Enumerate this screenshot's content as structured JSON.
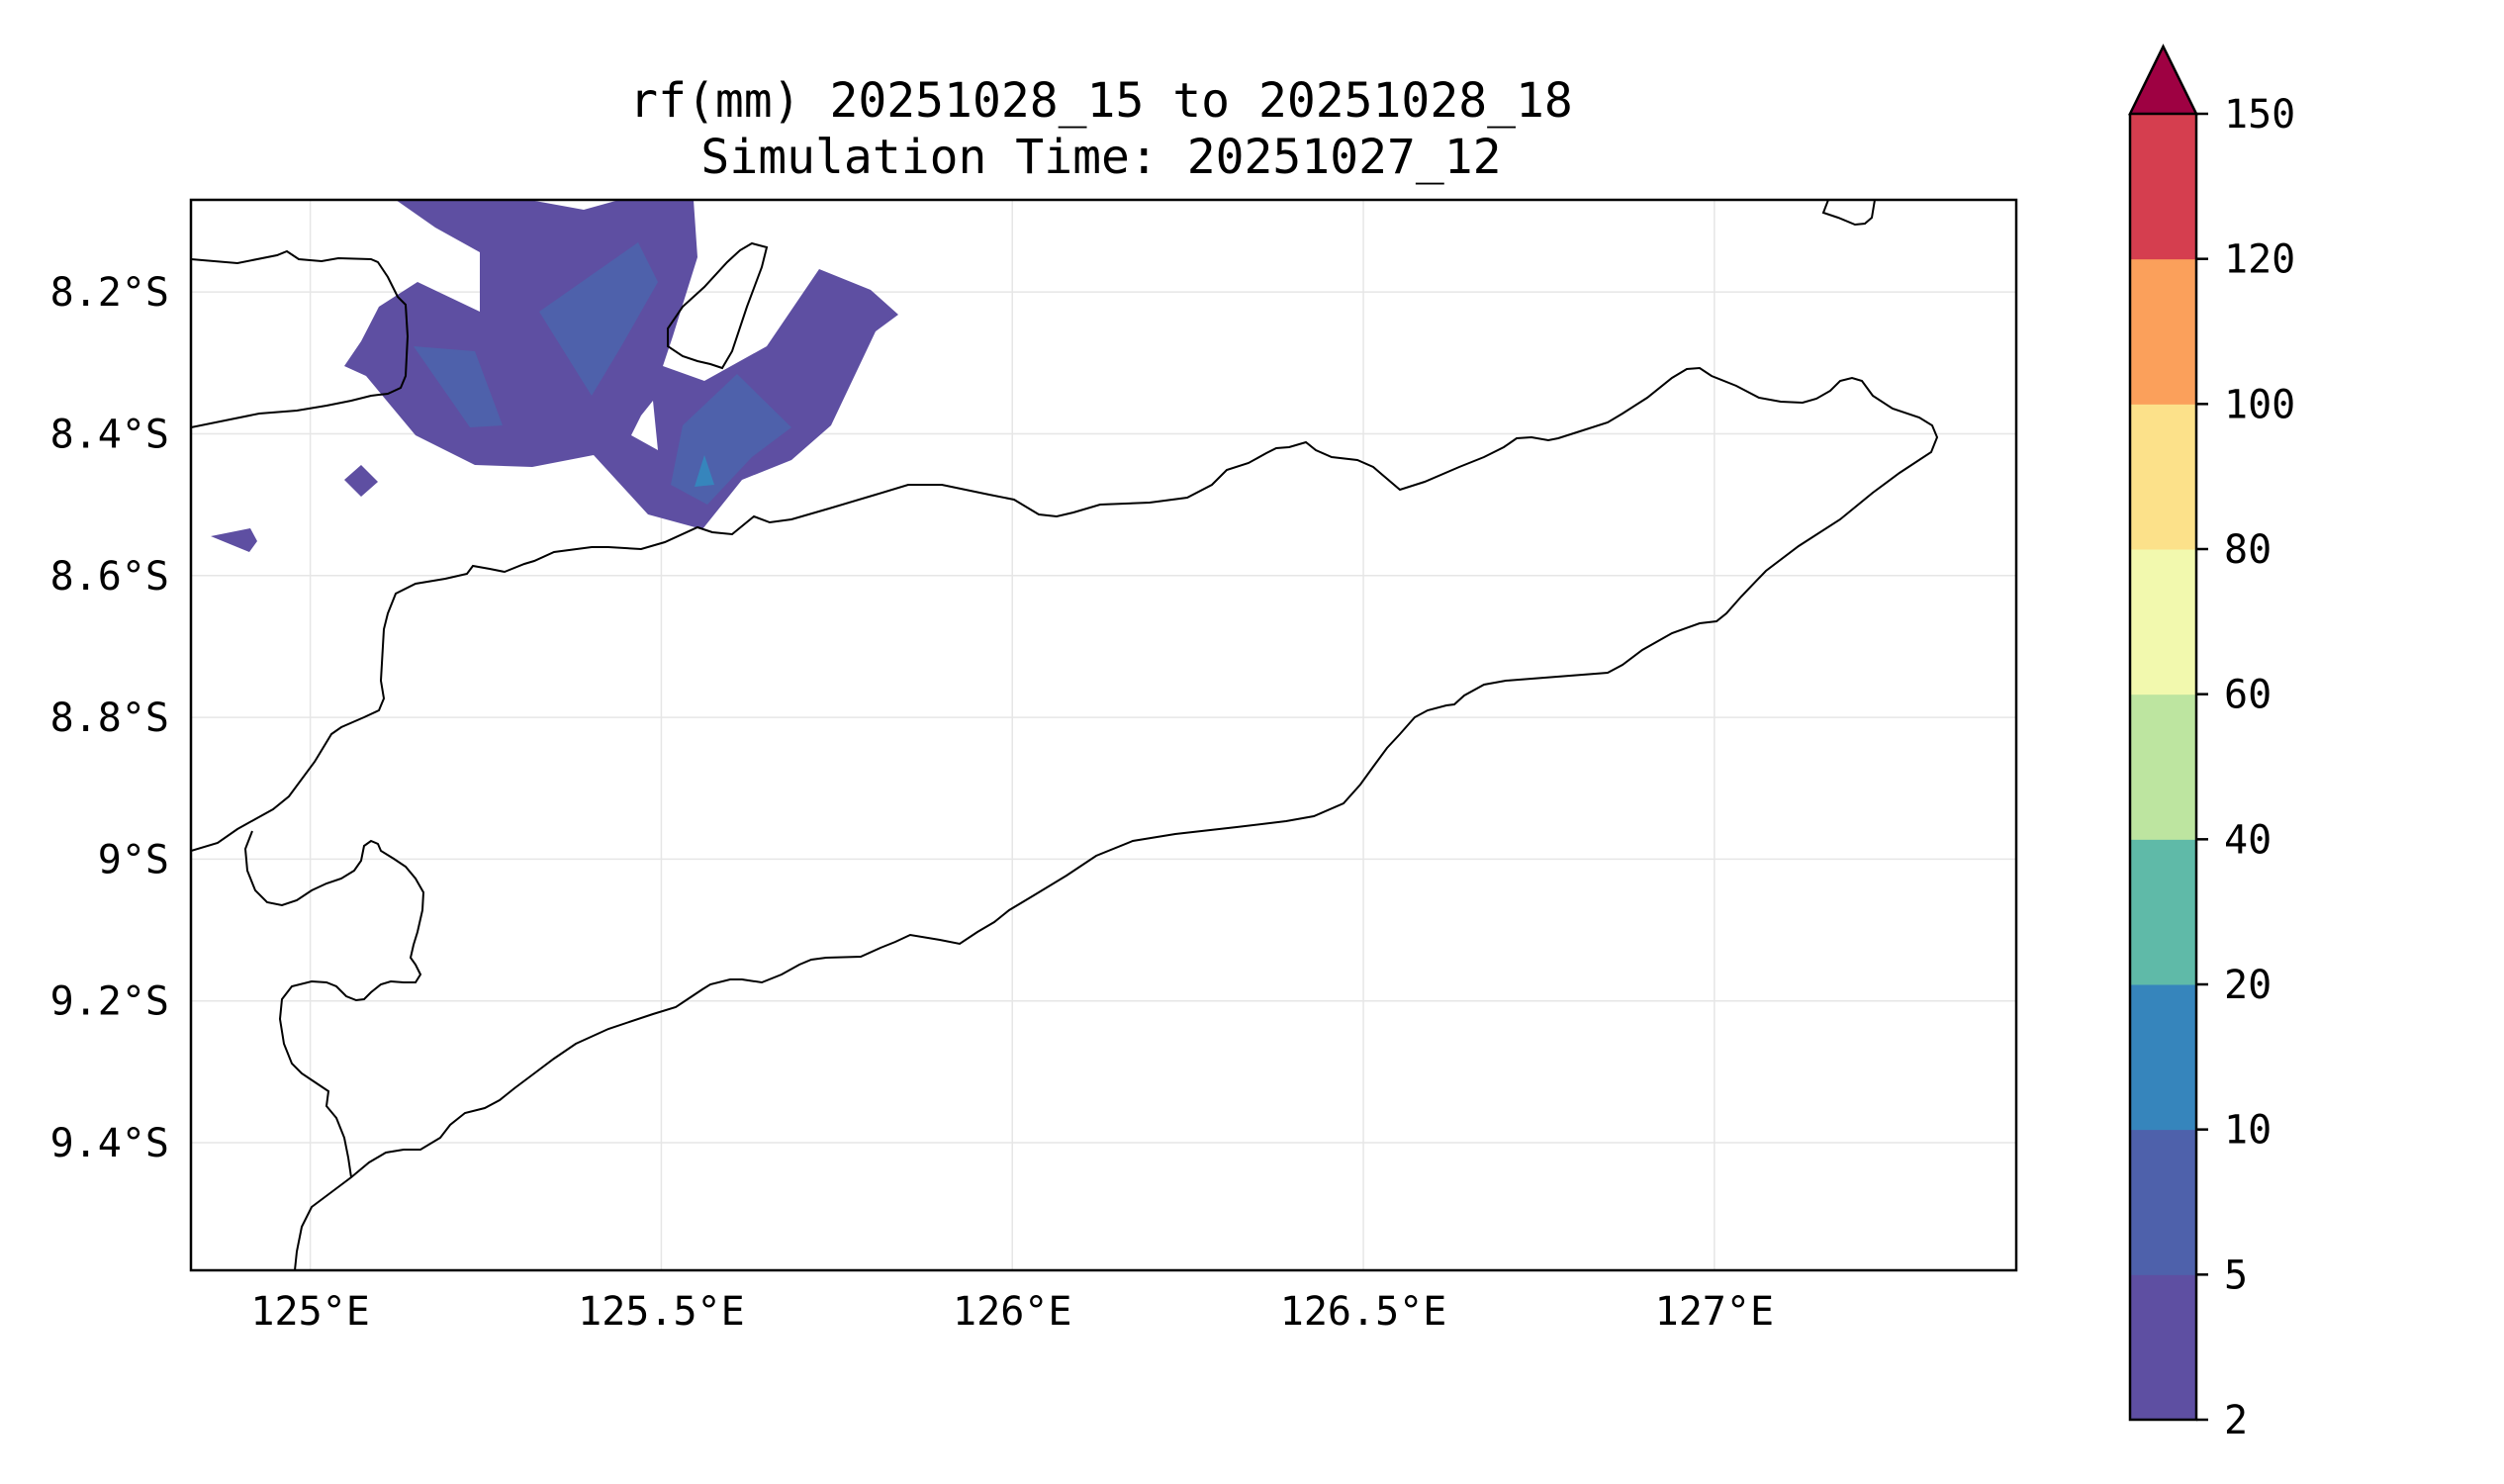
{
  "title": {
    "line1": "rf(mm) 20251028_15 to 20251028_18",
    "line2": "Simulation Time: 20251027_12"
  },
  "map": {
    "lon_range": [
      124.83,
      127.43
    ],
    "lat_range": [
      -9.58,
      -8.07
    ],
    "x_ticks": [
      {
        "value": 125.0,
        "label": "125°E"
      },
      {
        "value": 125.5,
        "label": "125.5°E"
      },
      {
        "value": 126.0,
        "label": "126°E"
      },
      {
        "value": 126.5,
        "label": "126.5°E"
      },
      {
        "value": 127.0,
        "label": "127°E"
      }
    ],
    "y_ticks": [
      {
        "value": -8.2,
        "label": "8.2°S"
      },
      {
        "value": -8.4,
        "label": "8.4°S"
      },
      {
        "value": -8.6,
        "label": "8.6°S"
      },
      {
        "value": -8.8,
        "label": "8.8°S"
      },
      {
        "value": -9.0,
        "label": "9°S"
      },
      {
        "value": -9.2,
        "label": "9.2°S"
      },
      {
        "value": -9.4,
        "label": "9.4°S"
      }
    ],
    "grid": true
  },
  "colorbar": {
    "levels": [
      {
        "label": "2",
        "color": "#5e4fa2"
      },
      {
        "label": "5",
        "color": "#4e61ab"
      },
      {
        "label": "10",
        "color": "#3685bc"
      },
      {
        "label": "20",
        "color": "#5fbaa8"
      },
      {
        "label": "40",
        "color": "#bde5a0"
      },
      {
        "label": "60",
        "color": "#f2f9ae"
      },
      {
        "label": "80",
        "color": "#fce18a"
      },
      {
        "label": "100",
        "color": "#fba05b"
      },
      {
        "label": "120",
        "color": "#d53e4f"
      }
    ],
    "top_label": "150",
    "extend_color": "#9e0142"
  },
  "rain_areas": [
    {
      "level": "2-5",
      "color": "#5e4fa2"
    },
    {
      "level": "5-10",
      "color": "#4e61ab"
    },
    {
      "level": "10-20",
      "color": "#3685bc"
    }
  ]
}
